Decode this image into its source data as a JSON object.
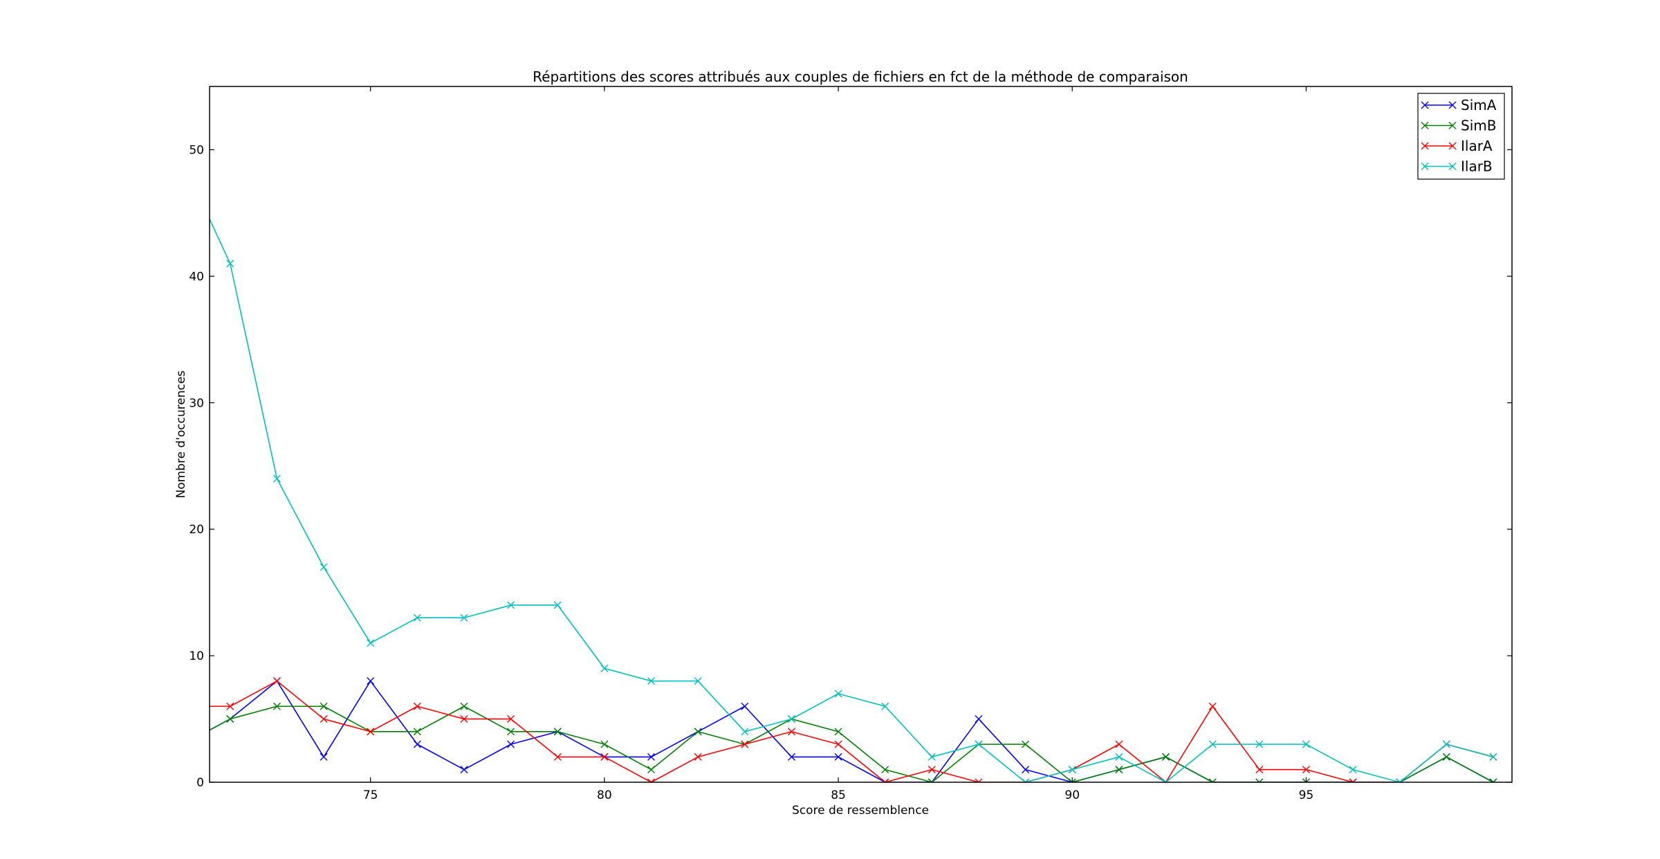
{
  "chart_data": {
    "type": "line",
    "title": "Répartitions des scores attribués aux couples de fichiers en fct de la méthode de comparaison",
    "xlabel": "Score de ressemblence",
    "ylabel": "Nombre d'occurences",
    "xlim": [
      71.56,
      99.4
    ],
    "ylim": [
      0,
      55
    ],
    "xticks": [
      75,
      80,
      85,
      90,
      95
    ],
    "yticks": [
      0,
      10,
      20,
      30,
      40,
      50
    ],
    "grid": false,
    "legend": "top-right",
    "marker": "x",
    "x": [
      71,
      72,
      73,
      74,
      75,
      76,
      77,
      78,
      79,
      80,
      81,
      82,
      83,
      84,
      85,
      86,
      87,
      88,
      89,
      90,
      91,
      92,
      93,
      94,
      95,
      96,
      97,
      98,
      99
    ],
    "series": [
      {
        "name": "SimA",
        "color": "#0000ff",
        "values": [
          3,
          5,
          8,
          2,
          8,
          3,
          1,
          3,
          4,
          2,
          2,
          4,
          6,
          2,
          2,
          0,
          0,
          5,
          1,
          0,
          1,
          2,
          0,
          0,
          0,
          0,
          0,
          2,
          0
        ]
      },
      {
        "name": "SimB",
        "color": "#008000",
        "values": [
          3,
          5,
          6,
          6,
          4,
          4,
          6,
          4,
          4,
          3,
          1,
          4,
          3,
          5,
          4,
          1,
          0,
          3,
          3,
          0,
          1,
          2,
          0,
          0,
          0,
          0,
          0,
          2,
          0
        ]
      },
      {
        "name": "IlarA",
        "color": "#ff0000",
        "values": [
          6,
          6,
          8,
          5,
          4,
          6,
          5,
          5,
          2,
          2,
          0,
          2,
          3,
          4,
          3,
          0,
          1,
          0,
          0,
          1,
          3,
          0,
          6,
          1,
          1,
          0,
          0,
          3,
          2
        ]
      },
      {
        "name": "IlarB",
        "color": "#00bfbf",
        "values": [
          49,
          41,
          24,
          17,
          11,
          13,
          13,
          14,
          14,
          9,
          8,
          8,
          4,
          5,
          7,
          6,
          2,
          3,
          0,
          1,
          2,
          0,
          3,
          3,
          3,
          1,
          0,
          3,
          2
        ]
      }
    ]
  }
}
